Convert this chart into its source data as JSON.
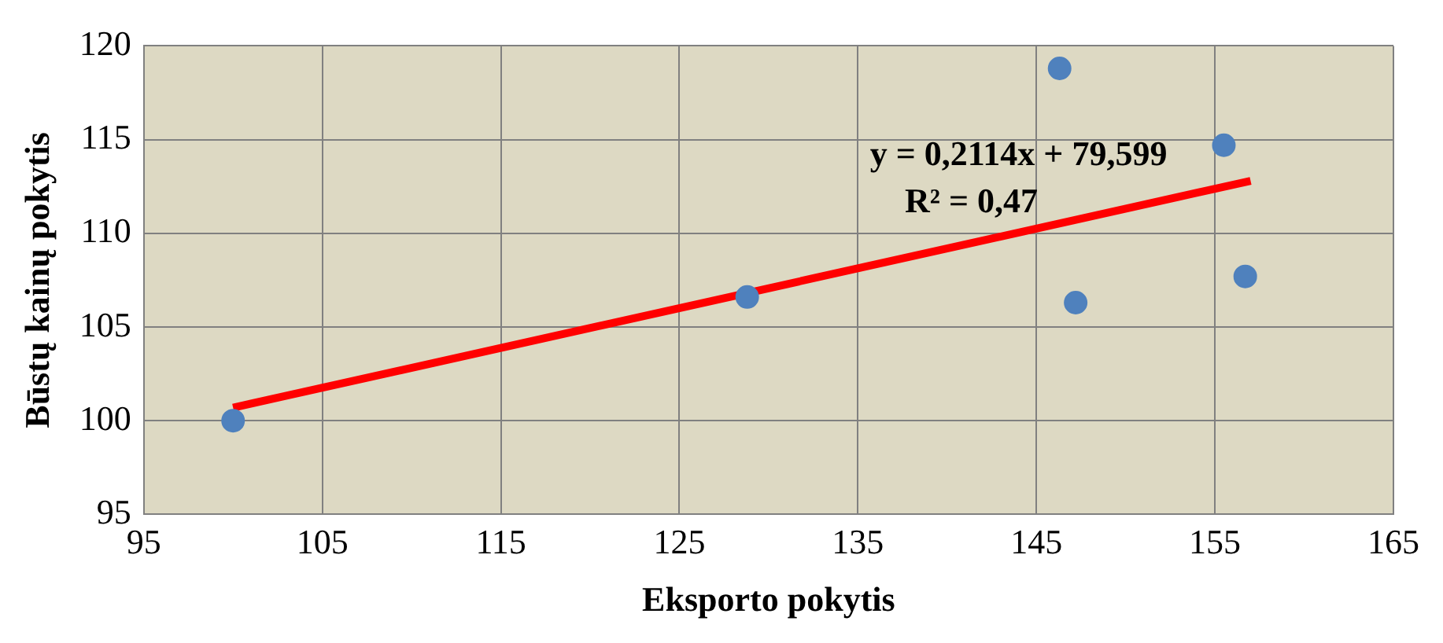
{
  "chart_data": {
    "type": "scatter",
    "xlabel": "Eksporto pokytis",
    "ylabel": "Būstų kainų pokytis",
    "xlim": [
      95,
      165
    ],
    "xticks": [
      95,
      105,
      115,
      125,
      135,
      145,
      155,
      165
    ],
    "ylim": [
      95,
      120
    ],
    "yticks": [
      95,
      100,
      105,
      110,
      115,
      120
    ],
    "grid": true,
    "legend": false,
    "marker": "circle",
    "series": [
      {
        "type": "scatter",
        "color": "#4f81bd",
        "x": [
          100,
          128.8,
          146.3,
          147.2,
          155.5,
          156.7
        ],
        "values": [
          100,
          106.6,
          118.8,
          106.3,
          114.7,
          107.7
        ]
      },
      {
        "type": "line",
        "color": "#ff0000",
        "marker": "none",
        "x": [
          100,
          157
        ],
        "values": [
          100.7,
          112.8
        ]
      }
    ],
    "annotations": [
      "y = 0,2114x + 79,599",
      "R² = 0,47"
    ]
  }
}
